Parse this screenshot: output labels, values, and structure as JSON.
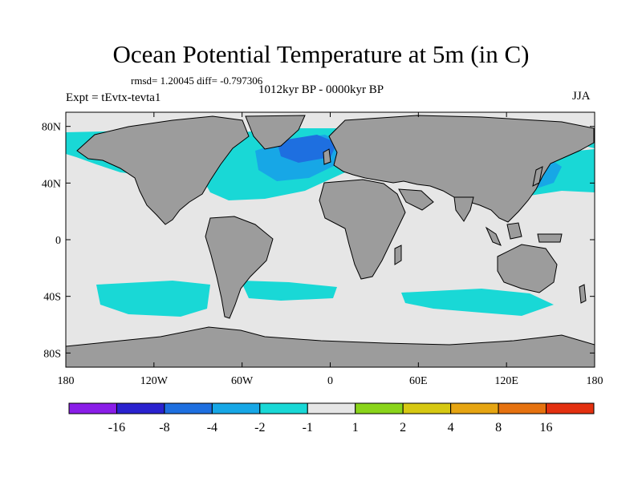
{
  "title": "Ocean Potential Temperature at 5m (in C)",
  "stats": "rmsd= 1.20045 diff= -0.797306",
  "experiment": "Expt = tEvtx-tevta1",
  "period": "1012kyr BP - 0000kyr BP",
  "season": "JJA",
  "axes": {
    "x_ticks": [
      {
        "value": -180,
        "label": "180"
      },
      {
        "value": -120,
        "label": "120W"
      },
      {
        "value": -60,
        "label": "60W"
      },
      {
        "value": 0,
        "label": "0"
      },
      {
        "value": 60,
        "label": "60E"
      },
      {
        "value": 120,
        "label": "120E"
      },
      {
        "value": 180,
        "label": "180"
      }
    ],
    "y_ticks": [
      {
        "value": 80,
        "label": "80N"
      },
      {
        "value": 40,
        "label": "40N"
      },
      {
        "value": 0,
        "label": "0"
      },
      {
        "value": -40,
        "label": "40S"
      },
      {
        "value": -80,
        "label": "80S"
      }
    ],
    "xlim": [
      -180,
      180
    ],
    "ylim": [
      -90,
      90
    ]
  },
  "colorbar": {
    "colors": [
      "#8a1de8",
      "#2a22cf",
      "#1e6fe0",
      "#17a7e6",
      "#19d8d6",
      "#e6e6e6",
      "#8ad41a",
      "#d6c812",
      "#e6a512",
      "#e6720f",
      "#e3300f"
    ],
    "labels": [
      "-16",
      "-8",
      "-4",
      "-2",
      "-1",
      "1",
      "2",
      "4",
      "8",
      "16"
    ]
  },
  "legend_colors": {
    "land": "#9c9c9c",
    "ocean_neutral": "#e6e6e6",
    "cooling_light": "#19d8d6",
    "cooling_medium": "#17a7e6",
    "cooling_strong": "#1e6fe0"
  }
}
